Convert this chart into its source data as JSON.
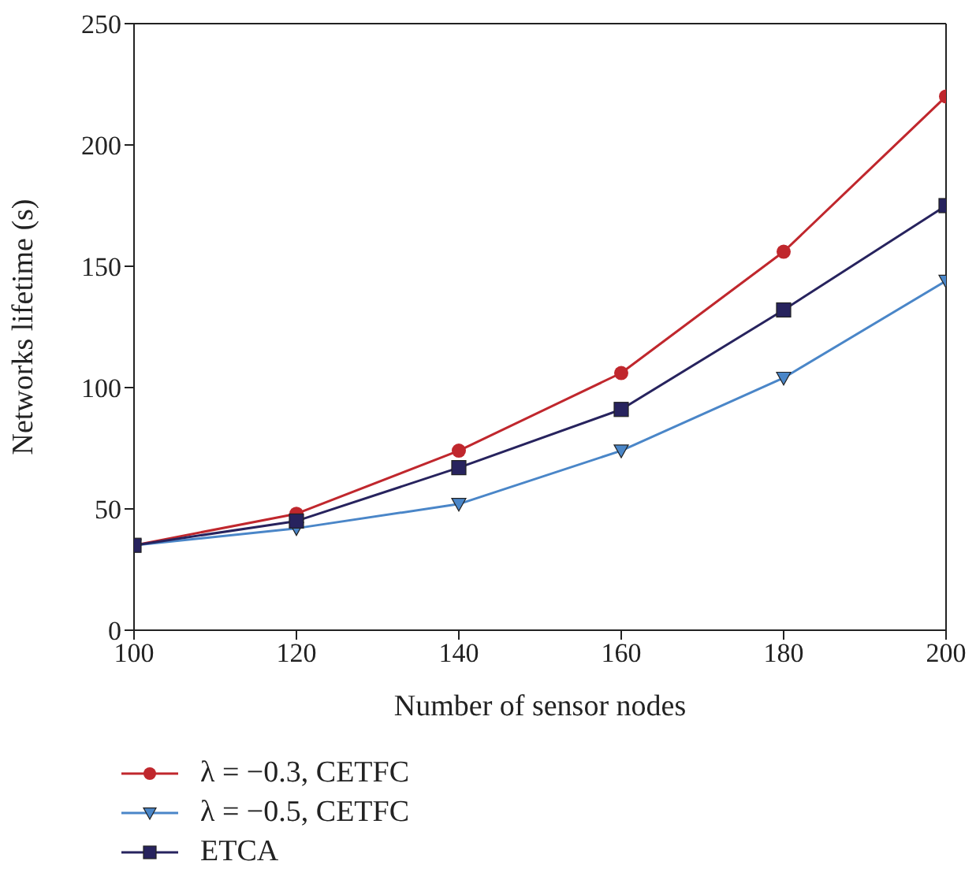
{
  "chart_data": {
    "type": "line",
    "xlabel": "Number of sensor nodes",
    "ylabel": "Networks lifetime (s)",
    "x": [
      100,
      120,
      140,
      160,
      180,
      200
    ],
    "series": [
      {
        "name": "λ = −0.3, CETFC",
        "color": "#c0272d",
        "marker": "circle",
        "values": [
          35,
          48,
          74,
          106,
          156,
          220
        ]
      },
      {
        "name": "λ = −0.5, CETFC",
        "color": "#4a86c8",
        "marker": "triangle",
        "values": [
          35,
          42,
          52,
          74,
          104,
          144
        ]
      },
      {
        "name": "ETCA",
        "color": "#27235e",
        "marker": "square",
        "values": [
          35,
          45,
          67,
          91,
          132,
          175
        ]
      }
    ],
    "xlim": [
      100,
      200
    ],
    "xticks": [
      100,
      120,
      140,
      160,
      180,
      200
    ],
    "ylim": [
      0,
      250
    ],
    "yticks": [
      0,
      50,
      100,
      150,
      200,
      250
    ],
    "grid": false,
    "legend": "bottom left"
  }
}
